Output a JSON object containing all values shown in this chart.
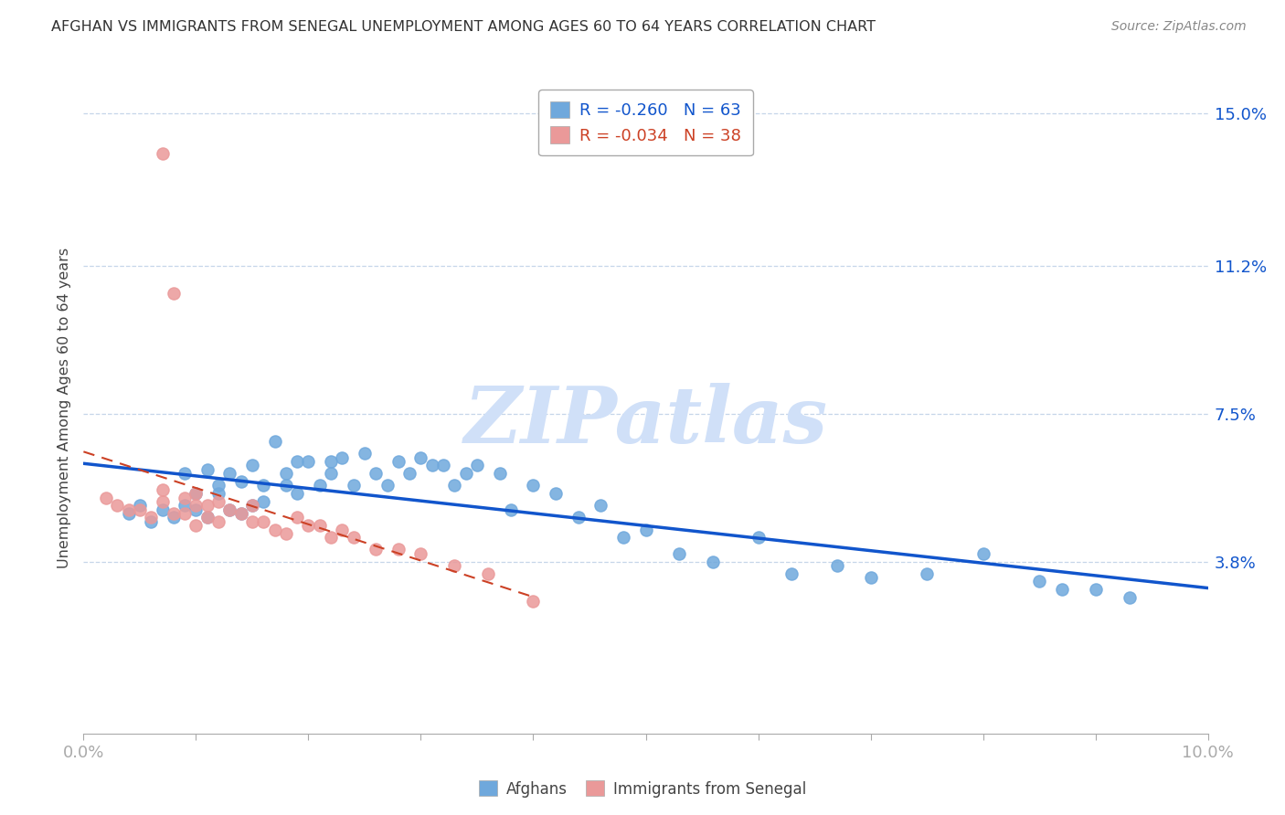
{
  "title": "AFGHAN VS IMMIGRANTS FROM SENEGAL UNEMPLOYMENT AMONG AGES 60 TO 64 YEARS CORRELATION CHART",
  "source": "Source: ZipAtlas.com",
  "ylabel": "Unemployment Among Ages 60 to 64 years",
  "xlim": [
    0.0,
    0.1
  ],
  "ylim": [
    -0.005,
    0.158
  ],
  "yticks": [
    0.038,
    0.075,
    0.112,
    0.15
  ],
  "yticklabels": [
    "3.8%",
    "7.5%",
    "11.2%",
    "15.0%"
  ],
  "blue_R": -0.26,
  "blue_N": 63,
  "pink_R": -0.034,
  "pink_N": 38,
  "blue_color": "#6fa8dc",
  "pink_color": "#ea9999",
  "trend_blue": "#1155cc",
  "trend_pink": "#cc4125",
  "watermark": "ZIPatlas",
  "watermark_color": "#d0e0f8",
  "legend_label_blue": "Afghans",
  "legend_label_pink": "Immigrants from Senegal",
  "blue_x": [
    0.004,
    0.005,
    0.006,
    0.007,
    0.008,
    0.009,
    0.009,
    0.01,
    0.01,
    0.011,
    0.011,
    0.012,
    0.012,
    0.013,
    0.013,
    0.014,
    0.014,
    0.015,
    0.015,
    0.016,
    0.016,
    0.017,
    0.018,
    0.018,
    0.019,
    0.019,
    0.02,
    0.021,
    0.022,
    0.022,
    0.023,
    0.024,
    0.025,
    0.026,
    0.027,
    0.028,
    0.029,
    0.03,
    0.031,
    0.032,
    0.033,
    0.034,
    0.035,
    0.037,
    0.038,
    0.04,
    0.042,
    0.044,
    0.046,
    0.048,
    0.05,
    0.053,
    0.056,
    0.06,
    0.063,
    0.067,
    0.07,
    0.075,
    0.08,
    0.085,
    0.087,
    0.09,
    0.093
  ],
  "blue_y": [
    0.05,
    0.052,
    0.048,
    0.051,
    0.049,
    0.052,
    0.06,
    0.051,
    0.055,
    0.049,
    0.061,
    0.055,
    0.057,
    0.051,
    0.06,
    0.05,
    0.058,
    0.052,
    0.062,
    0.053,
    0.057,
    0.068,
    0.057,
    0.06,
    0.063,
    0.055,
    0.063,
    0.057,
    0.063,
    0.06,
    0.064,
    0.057,
    0.065,
    0.06,
    0.057,
    0.063,
    0.06,
    0.064,
    0.062,
    0.062,
    0.057,
    0.06,
    0.062,
    0.06,
    0.051,
    0.057,
    0.055,
    0.049,
    0.052,
    0.044,
    0.046,
    0.04,
    0.038,
    0.044,
    0.035,
    0.037,
    0.034,
    0.035,
    0.04,
    0.033,
    0.031,
    0.031,
    0.029
  ],
  "pink_x": [
    0.002,
    0.003,
    0.004,
    0.005,
    0.006,
    0.007,
    0.007,
    0.008,
    0.008,
    0.009,
    0.009,
    0.01,
    0.01,
    0.011,
    0.011,
    0.012,
    0.012,
    0.013,
    0.014,
    0.015,
    0.015,
    0.016,
    0.017,
    0.018,
    0.019,
    0.02,
    0.021,
    0.022,
    0.023,
    0.024,
    0.026,
    0.028,
    0.03,
    0.033,
    0.036,
    0.04,
    0.007,
    0.01
  ],
  "pink_y": [
    0.054,
    0.052,
    0.051,
    0.051,
    0.049,
    0.053,
    0.14,
    0.05,
    0.105,
    0.054,
    0.05,
    0.052,
    0.055,
    0.049,
    0.052,
    0.048,
    0.053,
    0.051,
    0.05,
    0.052,
    0.048,
    0.048,
    0.046,
    0.045,
    0.049,
    0.047,
    0.047,
    0.044,
    0.046,
    0.044,
    0.041,
    0.041,
    0.04,
    0.037,
    0.035,
    0.028,
    0.056,
    0.047
  ]
}
